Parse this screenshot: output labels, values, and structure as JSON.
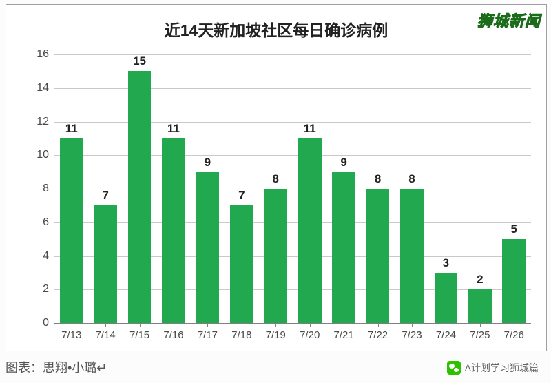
{
  "chart": {
    "type": "bar",
    "title": "近14天新加坡社区每日确诊病例",
    "title_fontsize": 23,
    "title_weight": 700,
    "categories": [
      "7/13",
      "7/14",
      "7/15",
      "7/16",
      "7/17",
      "7/18",
      "7/19",
      "7/20",
      "7/21",
      "7/22",
      "7/23",
      "7/24",
      "7/25",
      "7/26"
    ],
    "values": [
      11,
      7,
      15,
      11,
      9,
      7,
      8,
      11,
      9,
      8,
      8,
      3,
      2,
      5
    ],
    "bar_color": "#22a94f",
    "background_color": "#ffffff",
    "grid_color": "#c9c9c9",
    "axis_color": "#808080",
    "text_color": "#4a4a4a",
    "ylim": [
      0,
      16
    ],
    "ytick_step": 2,
    "yticks": [
      0,
      2,
      4,
      6,
      8,
      10,
      12,
      14,
      16
    ],
    "label_fontsize": 16,
    "value_label_fontsize": 17,
    "xlabel_fontsize": 15,
    "bar_width_ratio": 0.68,
    "frame_border_color": "#9aa0a6"
  },
  "watermark": {
    "text": "狮城新闻",
    "fill": "#ffd300",
    "stroke": "#1a6b1a"
  },
  "footer": {
    "left": "图表：思翔•小璐↵",
    "right_icon": "wechat-icon",
    "right_text": "A计划学习狮城篇"
  }
}
